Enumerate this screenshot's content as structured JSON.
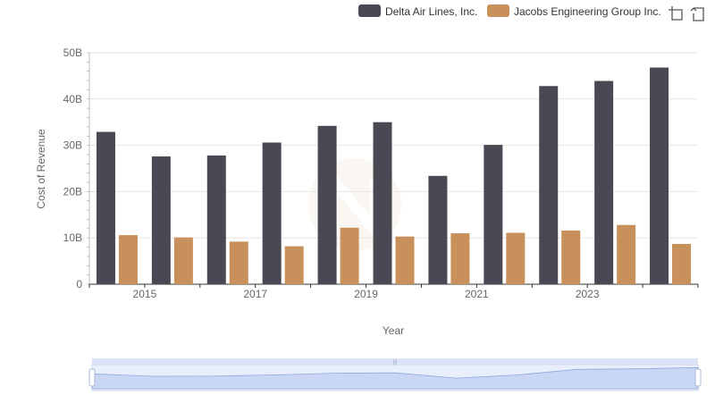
{
  "chart_data": {
    "type": "bar",
    "title": "",
    "xlabel": "Year",
    "ylabel": "Cost of Revenue",
    "ylim": [
      0,
      50000000000
    ],
    "y_ticks": [
      "0",
      "10B",
      "20B",
      "30B",
      "40B",
      "50B"
    ],
    "y_tick_values": [
      0,
      10000000000,
      20000000000,
      30000000000,
      40000000000,
      50000000000
    ],
    "categories": [
      "2014",
      "2015",
      "2016",
      "2017",
      "2018",
      "2019",
      "2020",
      "2021",
      "2022",
      "2023",
      "2024"
    ],
    "x_tick_labels": [
      "2015",
      "2017",
      "2019",
      "2021",
      "2023"
    ],
    "grid": true,
    "legend_position": "top-right",
    "series": [
      {
        "name": "Delta Air Lines, Inc.",
        "color": "#4a4953",
        "values": [
          32900000000,
          27600000000,
          27800000000,
          30600000000,
          34200000000,
          35000000000,
          23400000000,
          30100000000,
          42800000000,
          43900000000,
          46800000000
        ]
      },
      {
        "name": "Jacobs Engineering Group Inc.",
        "color": "#c8905a",
        "values": [
          10600000000,
          10100000000,
          9200000000,
          8200000000,
          12200000000,
          10300000000,
          11000000000,
          11100000000,
          11600000000,
          12800000000,
          8700000000
        ]
      }
    ]
  },
  "toolbar": {
    "icons": [
      "zoom-icon",
      "reset-icon"
    ]
  }
}
